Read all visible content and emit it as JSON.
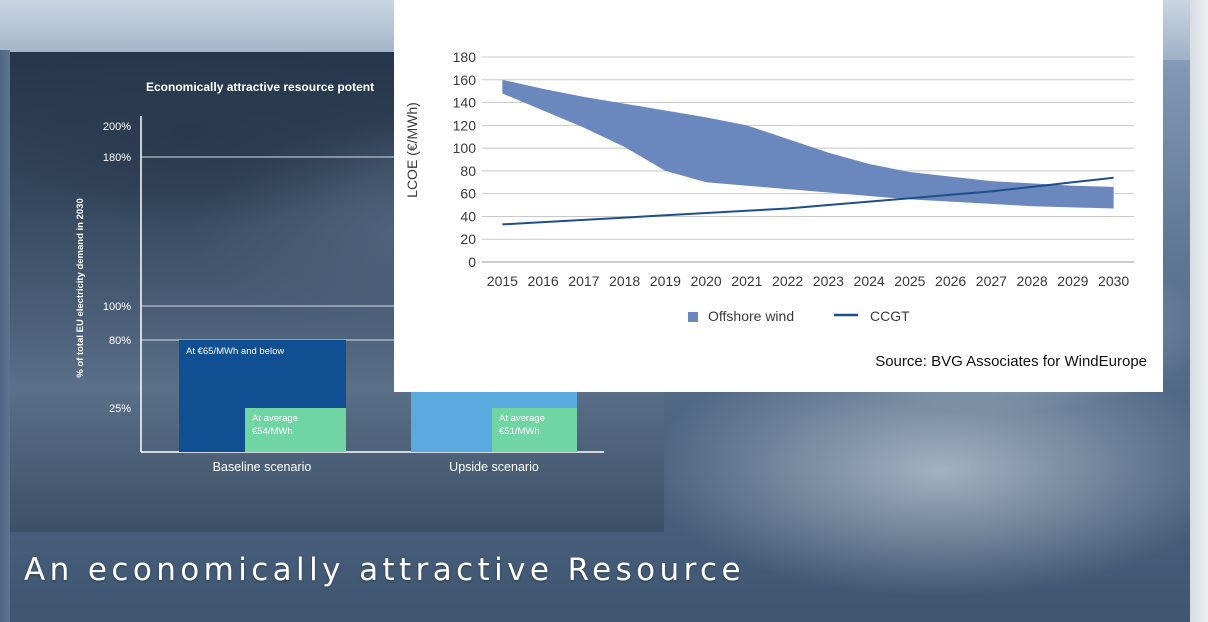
{
  "slide": {
    "title": "An economically attractive Resource"
  },
  "colors": {
    "offshore_band": "#6a88bd",
    "ccgt_line": "#1f4f8a",
    "grid": "#c8c8c8",
    "baseline_bar": "#0f4f92",
    "upside_bar": "#5aa9df",
    "average_bar": "#6fd6a3"
  },
  "chart_data": [
    {
      "type": "area",
      "ylabel": "LCOE (€/MWh)",
      "xlabel": "",
      "ylim": [
        0,
        180
      ],
      "yticks": [
        "0",
        "20",
        "40",
        "60",
        "80",
        "100",
        "120",
        "140",
        "160",
        "180"
      ],
      "x": [
        "2015",
        "2016",
        "2017",
        "2018",
        "2019",
        "2020",
        "2021",
        "2022",
        "2023",
        "2024",
        "2025",
        "2026",
        "2027",
        "2028",
        "2029",
        "2030"
      ],
      "grid": true,
      "legend_position": "bottom",
      "series": [
        {
          "name": "Offshore wind",
          "kind": "band",
          "upper": [
            160,
            152,
            145,
            139,
            133,
            127,
            120,
            108,
            96,
            86,
            79,
            75,
            71,
            69,
            67,
            66
          ],
          "lower": [
            148,
            133,
            118,
            101,
            80,
            70,
            67,
            64,
            61,
            58,
            55,
            53,
            51,
            49,
            48,
            47
          ]
        },
        {
          "name": "CCGT",
          "kind": "line",
          "values": [
            33,
            35,
            37,
            39,
            41,
            43,
            45,
            47,
            50,
            53,
            56,
            59,
            62,
            66,
            70,
            74
          ]
        }
      ],
      "source": "Source: BVG Associates for WindEurope"
    },
    {
      "type": "bar",
      "title": "Economically attractive resource potent",
      "ylabel": "% of total EU electricity demand in 2030",
      "yticks": [
        "200%",
        "180%",
        "100%",
        "80%",
        "25%"
      ],
      "ytick_values": [
        200,
        180,
        100,
        80,
        25
      ],
      "categories": [
        "Baseline scenario",
        "Upside scenario"
      ],
      "bars": [
        {
          "category": "Baseline scenario",
          "value": 80,
          "label": "At €65/MWh and below"
        },
        {
          "category": "Baseline scenario",
          "value": 25,
          "label_line1": "At average",
          "label_line2": "€54/MWh"
        },
        {
          "category": "Upside scenario",
          "value": 25,
          "label_line1": "At average",
          "label_line2": "€51/MWh"
        }
      ]
    }
  ]
}
